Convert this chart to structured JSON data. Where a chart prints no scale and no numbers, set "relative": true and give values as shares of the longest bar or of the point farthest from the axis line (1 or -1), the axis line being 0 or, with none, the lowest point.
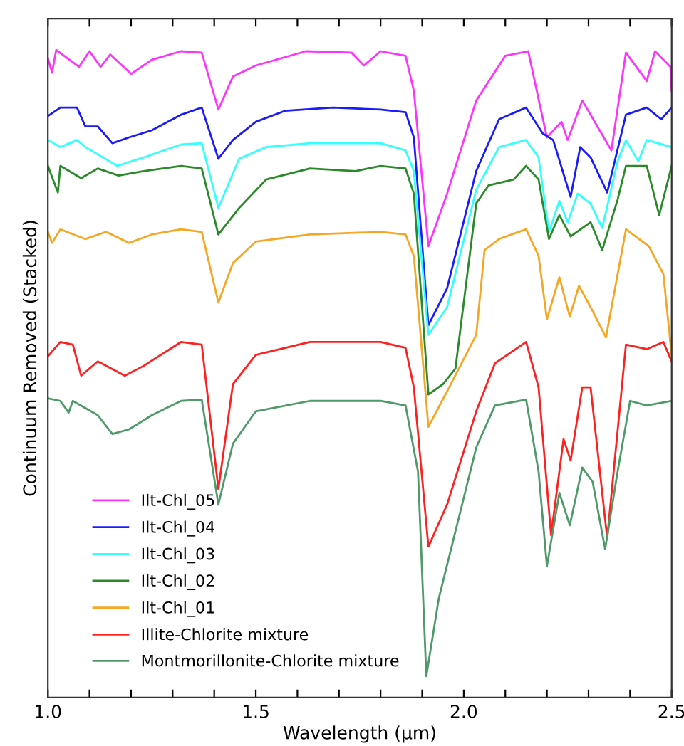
{
  "chart_data": {
    "type": "line",
    "relative": true,
    "xlabel": "Wavelength (µm)",
    "ylabel": "Continuum Removed (Stacked)",
    "legend": "bottom left",
    "grid": false,
    "xlim": [
      1.0,
      2.5
    ],
    "xticks": [
      {
        "value": 1.0,
        "label": "1.0"
      },
      {
        "value": 1.1,
        "label": null
      },
      {
        "value": 1.2,
        "label": null
      },
      {
        "value": 1.3,
        "label": null
      },
      {
        "value": 1.4,
        "label": null
      },
      {
        "value": 1.5,
        "label": "1.5"
      },
      {
        "value": 1.6,
        "label": null
      },
      {
        "value": 1.7,
        "label": null
      },
      {
        "value": 1.8,
        "label": null
      },
      {
        "value": 1.9,
        "label": null
      },
      {
        "value": 2.0,
        "label": "2.0"
      },
      {
        "value": 2.1,
        "label": null
      },
      {
        "value": 2.2,
        "label": null
      },
      {
        "value": 2.3,
        "label": null
      },
      {
        "value": 2.4,
        "label": null
      },
      {
        "value": 2.5,
        "label": "2.5"
      }
    ],
    "series": [
      {
        "name": "Ilt-Chl_05",
        "color": "#ff33ff",
        "x": [
          1.0,
          1.01,
          1.02,
          1.075,
          1.1,
          1.127,
          1.15,
          1.2,
          1.25,
          1.32,
          1.37,
          1.41,
          1.445,
          1.5,
          1.62,
          1.73,
          1.76,
          1.8,
          1.86,
          1.88,
          1.915,
          1.96,
          2.03,
          2.1,
          2.155,
          2.2,
          2.235,
          2.25,
          2.285,
          2.355,
          2.39,
          2.44,
          2.46,
          2.497,
          2.5
        ],
        "values": [
          0.987,
          0.965,
          1.0,
          0.974,
          0.998,
          0.974,
          0.993,
          0.963,
          0.985,
          0.998,
          0.996,
          0.908,
          0.959,
          0.976,
          0.998,
          0.996,
          0.976,
          0.998,
          0.991,
          0.937,
          0.697,
          0.778,
          0.922,
          0.991,
          0.998,
          0.865,
          0.889,
          0.861,
          0.922,
          0.845,
          0.996,
          0.952,
          0.998,
          0.974,
          0.937
        ]
      },
      {
        "name": "Ilt-Chl_04",
        "color": "#1a1aff",
        "x": [
          1.0,
          1.03,
          1.07,
          1.09,
          1.12,
          1.155,
          1.195,
          1.25,
          1.32,
          1.37,
          1.41,
          1.445,
          1.5,
          1.57,
          1.685,
          1.8,
          1.86,
          1.88,
          1.915,
          1.96,
          2.03,
          2.085,
          2.15,
          2.19,
          2.215,
          2.257,
          2.28,
          2.305,
          2.345,
          2.39,
          2.44,
          2.475,
          2.5
        ],
        "values": [
          0.898,
          0.911,
          0.911,
          0.882,
          0.882,
          0.856,
          0.865,
          0.876,
          0.9,
          0.911,
          0.832,
          0.861,
          0.889,
          0.906,
          0.911,
          0.908,
          0.904,
          0.865,
          0.575,
          0.632,
          0.813,
          0.893,
          0.911,
          0.871,
          0.861,
          0.773,
          0.85,
          0.834,
          0.78,
          0.9,
          0.911,
          0.893,
          0.911
        ]
      },
      {
        "name": "Ilt-Chl_03",
        "color": "#33ffff",
        "x": [
          1.0,
          1.03,
          1.07,
          1.09,
          1.167,
          1.23,
          1.32,
          1.37,
          1.41,
          1.46,
          1.525,
          1.63,
          1.8,
          1.86,
          1.88,
          1.915,
          1.96,
          2.03,
          2.085,
          2.15,
          2.18,
          2.205,
          2.23,
          2.25,
          2.274,
          2.305,
          2.333,
          2.37,
          2.39,
          2.42,
          2.44,
          2.5
        ],
        "values": [
          0.861,
          0.85,
          0.861,
          0.85,
          0.821,
          0.834,
          0.854,
          0.856,
          0.756,
          0.832,
          0.85,
          0.856,
          0.856,
          0.845,
          0.813,
          0.56,
          0.603,
          0.784,
          0.85,
          0.861,
          0.834,
          0.719,
          0.767,
          0.734,
          0.778,
          0.763,
          0.725,
          0.828,
          0.861,
          0.828,
          0.861,
          0.85
        ]
      },
      {
        "name": "Ilt-Chl_02",
        "color": "#2a8a2a",
        "x": [
          1.0,
          1.024,
          1.03,
          1.08,
          1.12,
          1.17,
          1.23,
          1.32,
          1.37,
          1.41,
          1.46,
          1.525,
          1.63,
          1.74,
          1.8,
          1.86,
          1.88,
          1.915,
          1.95,
          1.98,
          2.03,
          2.06,
          2.12,
          2.15,
          2.18,
          2.205,
          2.23,
          2.257,
          2.305,
          2.333,
          2.37,
          2.39,
          2.44,
          2.47,
          2.5
        ],
        "values": [
          0.821,
          0.78,
          0.821,
          0.802,
          0.817,
          0.806,
          0.813,
          0.821,
          0.817,
          0.715,
          0.756,
          0.8,
          0.817,
          0.813,
          0.821,
          0.817,
          0.778,
          0.468,
          0.484,
          0.508,
          0.763,
          0.791,
          0.8,
          0.821,
          0.8,
          0.708,
          0.745,
          0.712,
          0.734,
          0.691,
          0.769,
          0.821,
          0.821,
          0.745,
          0.821
        ]
      },
      {
        "name": "Ilt-Chl_01",
        "color": "#f5a623",
        "x": [
          1.0,
          1.01,
          1.03,
          1.09,
          1.14,
          1.195,
          1.25,
          1.32,
          1.37,
          1.41,
          1.445,
          1.5,
          1.63,
          1.8,
          1.86,
          1.88,
          1.915,
          1.96,
          2.03,
          2.05,
          2.085,
          2.15,
          2.18,
          2.2,
          2.23,
          2.255,
          2.277,
          2.305,
          2.342,
          2.39,
          2.445,
          2.48,
          2.5
        ],
        "values": [
          0.719,
          0.702,
          0.723,
          0.708,
          0.719,
          0.702,
          0.715,
          0.723,
          0.719,
          0.61,
          0.671,
          0.704,
          0.715,
          0.719,
          0.715,
          0.682,
          0.418,
          0.473,
          0.56,
          0.691,
          0.708,
          0.723,
          0.682,
          0.584,
          0.649,
          0.588,
          0.636,
          0.603,
          0.556,
          0.723,
          0.697,
          0.654,
          0.529
        ]
      },
      {
        "name": "Illite-Chlorite mixture",
        "color": "#ff2020",
        "x": [
          1.0,
          1.03,
          1.06,
          1.08,
          1.12,
          1.185,
          1.23,
          1.32,
          1.37,
          1.41,
          1.445,
          1.5,
          1.63,
          1.8,
          1.86,
          1.88,
          1.915,
          1.96,
          2.03,
          2.075,
          2.15,
          2.18,
          2.21,
          2.24,
          2.257,
          2.285,
          2.305,
          2.345,
          2.39,
          2.44,
          2.48,
          2.5
        ],
        "values": [
          0.527,
          0.549,
          0.545,
          0.497,
          0.519,
          0.497,
          0.512,
          0.549,
          0.545,
          0.322,
          0.484,
          0.529,
          0.549,
          0.549,
          0.54,
          0.479,
          0.233,
          0.298,
          0.442,
          0.516,
          0.549,
          0.479,
          0.251,
          0.399,
          0.366,
          0.479,
          0.479,
          0.246,
          0.545,
          0.538,
          0.549,
          0.519
        ]
      },
      {
        "name": "Montmorillonite-Chlorite mixture",
        "color": "#4e9a6a",
        "x": [
          1.0,
          1.03,
          1.05,
          1.06,
          1.12,
          1.155,
          1.195,
          1.25,
          1.32,
          1.37,
          1.41,
          1.445,
          1.5,
          1.63,
          1.8,
          1.86,
          1.89,
          1.91,
          1.94,
          2.03,
          2.075,
          2.15,
          2.18,
          2.2,
          2.23,
          2.255,
          2.285,
          2.31,
          2.34,
          2.37,
          2.4,
          2.44,
          2.5
        ],
        "values": [
          0.462,
          0.458,
          0.44,
          0.458,
          0.436,
          0.407,
          0.414,
          0.436,
          0.458,
          0.46,
          0.298,
          0.392,
          0.442,
          0.458,
          0.458,
          0.451,
          0.349,
          0.033,
          0.153,
          0.386,
          0.451,
          0.46,
          0.349,
          0.203,
          0.316,
          0.266,
          0.355,
          0.333,
          0.229,
          0.349,
          0.458,
          0.451,
          0.458
        ]
      }
    ]
  }
}
